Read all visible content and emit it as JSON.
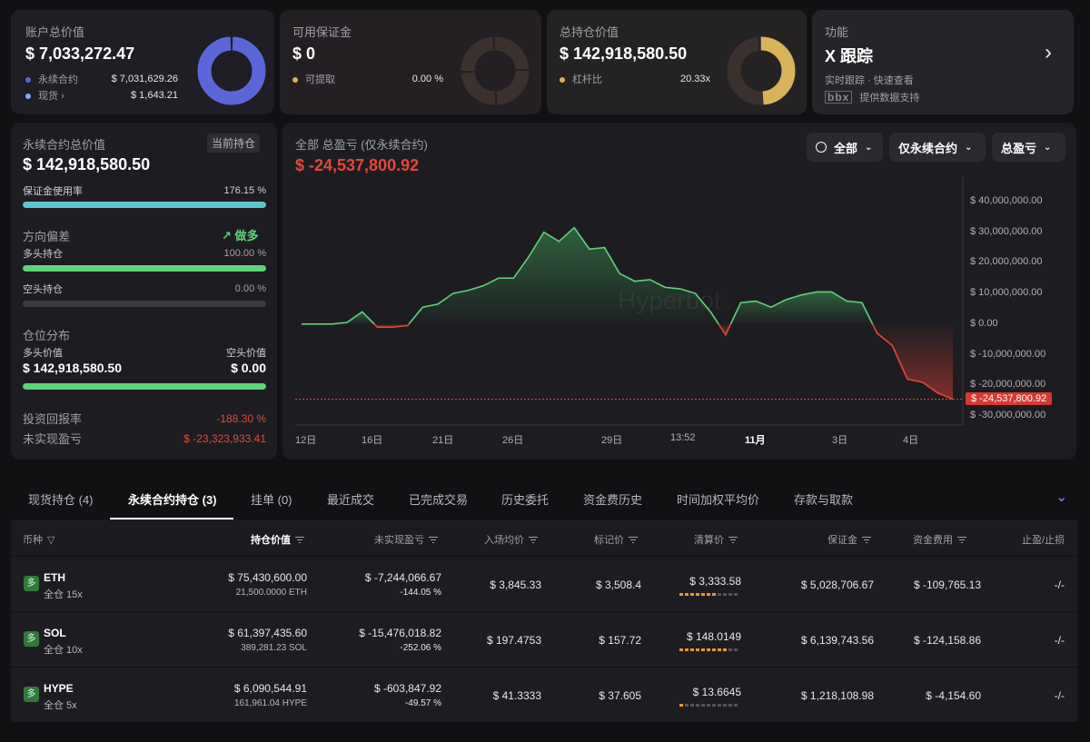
{
  "summary": {
    "account": {
      "label": "账户总价值",
      "value": "$ 7,033,272.47",
      "perp_label": "永续合约",
      "perp_value": "$ 7,031,629.26",
      "spot_label": "现货",
      "spot_value": "$ 1,643.21"
    },
    "margin": {
      "label": "可用保证金",
      "value": "$ 0",
      "withdraw_label": "可提取",
      "withdraw_value": "0.00 %"
    },
    "position": {
      "label": "总持仓价值",
      "value": "$ 142,918,580.50",
      "leverage_label": "杠杆比",
      "leverage_value": "20.33x"
    },
    "feature": {
      "label": "功能",
      "title": "X 跟踪",
      "subtitle": "实时跟踪 · 快速查看",
      "provider_logo": "bbx",
      "provider_text": "提供数据支持"
    }
  },
  "perp_panel": {
    "title": "永续合约总价值",
    "badge": "当前持仓",
    "value": "$ 142,918,580.50",
    "margin_usage_label": "保证金使用率",
    "margin_usage_value": "176.15 %",
    "margin_usage_fraction": 1.0,
    "bias_label": "方向偏差",
    "bias_value": "做多",
    "long_label": "多头持仓",
    "long_value": "100.00 %",
    "long_fraction": 1.0,
    "short_label": "空头持仓",
    "short_value": "0.00 %",
    "short_fraction": 0.0,
    "dist_label": "仓位分布",
    "long_val_label": "多头价值",
    "short_val_label": "空头价值",
    "long_val": "$ 142,918,580.50",
    "short_val": "$ 0.00",
    "dist_fraction": 1.0,
    "roi_label": "投资回报率",
    "roi_value": "-188.30 %",
    "unrealized_label": "未实现盈亏",
    "unrealized_value": "$ -23,323,933.41"
  },
  "pnl_chart": {
    "title": "全部 总盈亏 (仅永续合约)",
    "value": "$ -24,537,800.92",
    "filters": {
      "range": "全部",
      "scope": "仅永续合约",
      "metric": "总盈亏"
    },
    "watermark": "Hyperbot"
  },
  "chart_data": {
    "type": "area",
    "ylim": [
      -30000000,
      40000000
    ],
    "y_ticks": [
      "$ 40,000,000.00",
      "$ 30,000,000.00",
      "$ 20,000,000.00",
      "$ 10,000,000.00",
      "$ 0.00",
      "$ -10,000,000.00",
      "$ -20,000,000.00",
      "$ -30,000,000.00"
    ],
    "x_ticks": [
      "12日",
      "16日",
      "21日",
      "26日",
      "29日",
      "13:52",
      "11月",
      "3日",
      "4日"
    ],
    "current_label": "$ -24,537,800.92",
    "current_value": -24537800.92,
    "values": [
      0,
      0,
      0,
      500000,
      4000000,
      -1000000,
      -1000000,
      -500000,
      5500000,
      6500000,
      10000000,
      11000000,
      12500000,
      15000000,
      15000000,
      22000000,
      30000000,
      27000000,
      31500000,
      24500000,
      25000000,
      16500000,
      14000000,
      14500000,
      12000000,
      11500000,
      10000000,
      4000000,
      -3500000,
      7000000,
      7500000,
      5500000,
      8000000,
      9500000,
      10500000,
      10500000,
      7500000,
      7000000,
      -3000000,
      -7000000,
      -18000000,
      -19000000,
      -22500000,
      -24537800.92
    ]
  },
  "tabs": [
    "现货持仓 (4)",
    "永续合约持仓 (3)",
    "挂单 (0)",
    "最近成交",
    "已完成交易",
    "历史委托",
    "资金费历史",
    "时间加权平均价",
    "存款与取款"
  ],
  "active_tab": 1,
  "table": {
    "headers": [
      "币种",
      "持仓价值",
      "未实现盈亏",
      "入场均价",
      "标记价",
      "清算价",
      "保证金",
      "资金费用",
      "止盈/止损"
    ],
    "rows": [
      {
        "side": "多",
        "coin": "ETH",
        "mode": "全仓 15x",
        "value": "$ 75,430,600.00",
        "size": "21,500.0000 ETH",
        "pnl": "$ -7,244,066.67",
        "pnl_pct": "-144.05 %",
        "entry": "$ 3,845.33",
        "mark": "$ 3,508.4",
        "liq": "$ 3,333.58",
        "liq_level": 0.6,
        "margin": "$ 5,028,706.67",
        "funding": "$ -109,765.13",
        "tpsl": "-/-"
      },
      {
        "side": "多",
        "coin": "SOL",
        "mode": "全仓 10x",
        "value": "$ 61,397,435.60",
        "size": "389,281.23 SOL",
        "pnl": "$ -15,476,018.82",
        "pnl_pct": "-252.06 %",
        "entry": "$ 197.4753",
        "mark": "$ 157.72",
        "liq": "$ 148.0149",
        "liq_level": 0.8,
        "margin": "$ 6,139,743.56",
        "funding": "$ -124,158.86",
        "tpsl": "-/-"
      },
      {
        "side": "多",
        "coin": "HYPE",
        "mode": "全仓 5x",
        "value": "$ 6,090,544.91",
        "size": "161,961.04 HYPE",
        "pnl": "$ -603,847.92",
        "pnl_pct": "-49.57 %",
        "entry": "$ 41.3333",
        "mark": "$ 37.605",
        "liq": "$ 13.6645",
        "liq_level": 0.1,
        "margin": "$ 1,218,108.98",
        "funding": "$ -4,154.60",
        "tpsl": "-/-"
      }
    ]
  },
  "colors": {
    "accent_blue": "#5b67d8",
    "gold": "#d8b35a",
    "red": "#e5473c",
    "green": "#5fd37a",
    "cyan": "#5ec6d0"
  }
}
